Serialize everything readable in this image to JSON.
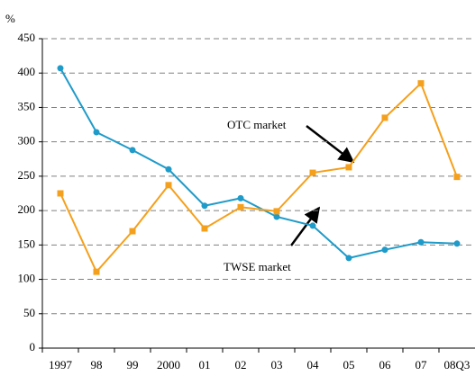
{
  "chart_data": {
    "type": "line",
    "y_label": "%",
    "categories": [
      "1997",
      "98",
      "99",
      "2000",
      "01",
      "02",
      "03",
      "04",
      "05",
      "06",
      "07",
      "08Q3"
    ],
    "series": [
      {
        "name": "TWSE market",
        "color": "#1f9bc9",
        "values": [
          407,
          314,
          288,
          260,
          207,
          218,
          191,
          178,
          131,
          143,
          154,
          152
        ]
      },
      {
        "name": "OTC market",
        "color": "#f5a01c",
        "values": [
          225,
          111,
          170,
          237,
          174,
          205,
          199,
          255,
          263,
          335,
          385,
          249
        ]
      }
    ],
    "ylim": [
      0,
      450
    ],
    "yticks": [
      0,
      50,
      100,
      150,
      200,
      250,
      300,
      350,
      400,
      450
    ],
    "grid": true
  }
}
